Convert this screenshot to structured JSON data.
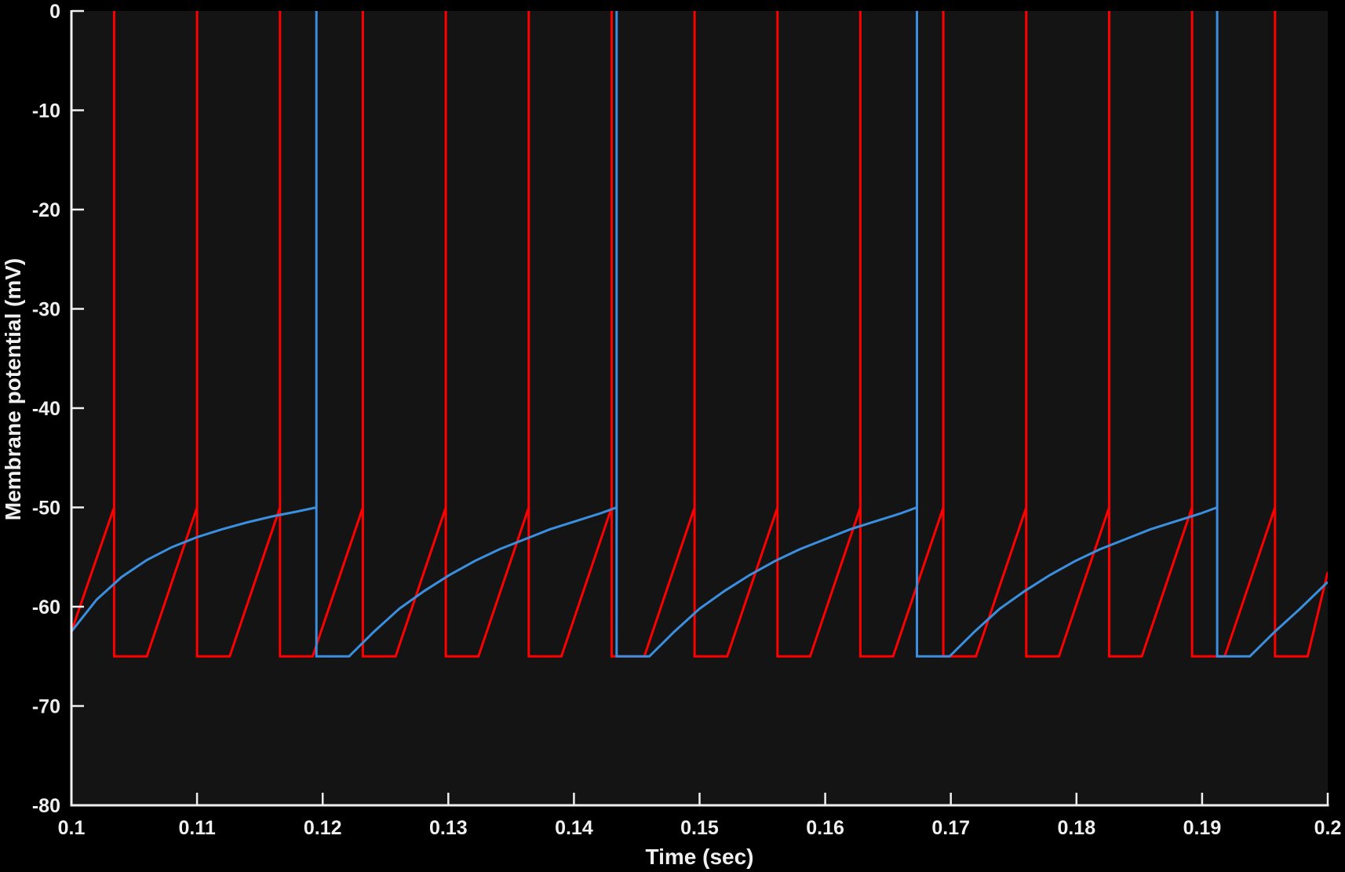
{
  "chart_data": {
    "type": "line",
    "title": "",
    "xlabel": "Time (sec)",
    "ylabel": "Membrane potential (mV)",
    "xlim": [
      0.1,
      0.2
    ],
    "ylim": [
      -80,
      0
    ],
    "xticks": [
      0.1,
      0.11,
      0.12,
      0.13,
      0.14,
      0.15,
      0.16,
      0.17,
      0.18,
      0.19,
      0.2
    ],
    "xtick_labels": [
      "0.1",
      "0.11",
      "0.12",
      "0.13",
      "0.14",
      "0.15",
      "0.16",
      "0.17",
      "0.18",
      "0.19",
      "0.2"
    ],
    "yticks": [
      0,
      -10,
      -20,
      -30,
      -40,
      -50,
      -60,
      -70,
      -80
    ],
    "ytick_labels": [
      "0",
      "-10",
      "-20",
      "-30",
      "-40",
      "-50",
      "-60",
      "-70",
      "-80"
    ],
    "grid": false,
    "background": "#141414",
    "series": [
      {
        "color": "#ff0000",
        "points": [
          [
            0.1,
            -62.5
          ],
          [
            0.1034,
            -50
          ],
          [
            0.1034,
            0
          ],
          [
            0.1034,
            -65
          ],
          [
            0.106,
            -65
          ],
          [
            0.11,
            -50
          ],
          [
            0.11,
            0
          ],
          [
            0.11,
            -65
          ],
          [
            0.1126,
            -65
          ],
          [
            0.1166,
            -50
          ],
          [
            0.1166,
            0
          ],
          [
            0.1166,
            -65
          ],
          [
            0.1192,
            -65
          ],
          [
            0.1232,
            -50
          ],
          [
            0.1232,
            0
          ],
          [
            0.1232,
            -65
          ],
          [
            0.1258,
            -65
          ],
          [
            0.1298,
            -50
          ],
          [
            0.1298,
            0
          ],
          [
            0.1298,
            -65
          ],
          [
            0.1324,
            -65
          ],
          [
            0.1364,
            -50
          ],
          [
            0.1364,
            0
          ],
          [
            0.1364,
            -65
          ],
          [
            0.139,
            -65
          ],
          [
            0.143,
            -50
          ],
          [
            0.143,
            0
          ],
          [
            0.143,
            -65
          ],
          [
            0.1456,
            -65
          ],
          [
            0.1496,
            -50
          ],
          [
            0.1496,
            0
          ],
          [
            0.1496,
            -65
          ],
          [
            0.1522,
            -65
          ],
          [
            0.1562,
            -50
          ],
          [
            0.1562,
            0
          ],
          [
            0.1562,
            -65
          ],
          [
            0.1588,
            -65
          ],
          [
            0.1628,
            -50
          ],
          [
            0.1628,
            0
          ],
          [
            0.1628,
            -65
          ],
          [
            0.1654,
            -65
          ],
          [
            0.1694,
            -50
          ],
          [
            0.1694,
            0
          ],
          [
            0.1694,
            -65
          ],
          [
            0.172,
            -65
          ],
          [
            0.176,
            -50
          ],
          [
            0.176,
            0
          ],
          [
            0.176,
            -65
          ],
          [
            0.1786,
            -65
          ],
          [
            0.1826,
            -50
          ],
          [
            0.1826,
            0
          ],
          [
            0.1826,
            -65
          ],
          [
            0.1852,
            -65
          ],
          [
            0.1892,
            -50
          ],
          [
            0.1892,
            0
          ],
          [
            0.1892,
            -65
          ],
          [
            0.1918,
            -65
          ],
          [
            0.1958,
            -50
          ],
          [
            0.1958,
            0
          ],
          [
            0.1958,
            -65
          ],
          [
            0.1984,
            -65
          ],
          [
            0.2,
            -56.5
          ]
        ]
      },
      {
        "color": "#3b8fde",
        "points": [
          [
            0.1,
            -62.5
          ],
          [
            0.102,
            -59.3
          ],
          [
            0.104,
            -57.0
          ],
          [
            0.106,
            -55.3
          ],
          [
            0.108,
            -54.0
          ],
          [
            0.11,
            -53.0
          ],
          [
            0.112,
            -52.2
          ],
          [
            0.114,
            -51.5
          ],
          [
            0.116,
            -50.9
          ],
          [
            0.118,
            -50.4
          ],
          [
            0.1195,
            -50.0
          ],
          [
            0.1195,
            0
          ],
          [
            0.1195,
            -65
          ],
          [
            0.1221,
            -65
          ],
          [
            0.1241,
            -62.5
          ],
          [
            0.1261,
            -60.2
          ],
          [
            0.1281,
            -58.4
          ],
          [
            0.1301,
            -56.8
          ],
          [
            0.1321,
            -55.4
          ],
          [
            0.1341,
            -54.2
          ],
          [
            0.1361,
            -53.2
          ],
          [
            0.1381,
            -52.2
          ],
          [
            0.1401,
            -51.4
          ],
          [
            0.1421,
            -50.6
          ],
          [
            0.1434,
            -50.0
          ],
          [
            0.1434,
            0
          ],
          [
            0.1434,
            -65
          ],
          [
            0.146,
            -65
          ],
          [
            0.148,
            -62.5
          ],
          [
            0.15,
            -60.2
          ],
          [
            0.152,
            -58.4
          ],
          [
            0.154,
            -56.8
          ],
          [
            0.156,
            -55.4
          ],
          [
            0.158,
            -54.2
          ],
          [
            0.16,
            -53.2
          ],
          [
            0.162,
            -52.2
          ],
          [
            0.164,
            -51.4
          ],
          [
            0.166,
            -50.6
          ],
          [
            0.1673,
            -50.0
          ],
          [
            0.1673,
            0
          ],
          [
            0.1673,
            -65
          ],
          [
            0.1699,
            -65
          ],
          [
            0.1719,
            -62.5
          ],
          [
            0.1739,
            -60.2
          ],
          [
            0.1759,
            -58.4
          ],
          [
            0.1779,
            -56.8
          ],
          [
            0.1799,
            -55.4
          ],
          [
            0.1819,
            -54.2
          ],
          [
            0.1839,
            -53.2
          ],
          [
            0.1859,
            -52.2
          ],
          [
            0.1879,
            -51.4
          ],
          [
            0.1899,
            -50.6
          ],
          [
            0.1912,
            -50.0
          ],
          [
            0.1912,
            0
          ],
          [
            0.1912,
            -65
          ],
          [
            0.1938,
            -65
          ],
          [
            0.1958,
            -62.5
          ],
          [
            0.1978,
            -60.2
          ],
          [
            0.2,
            -57.5
          ]
        ]
      }
    ]
  }
}
